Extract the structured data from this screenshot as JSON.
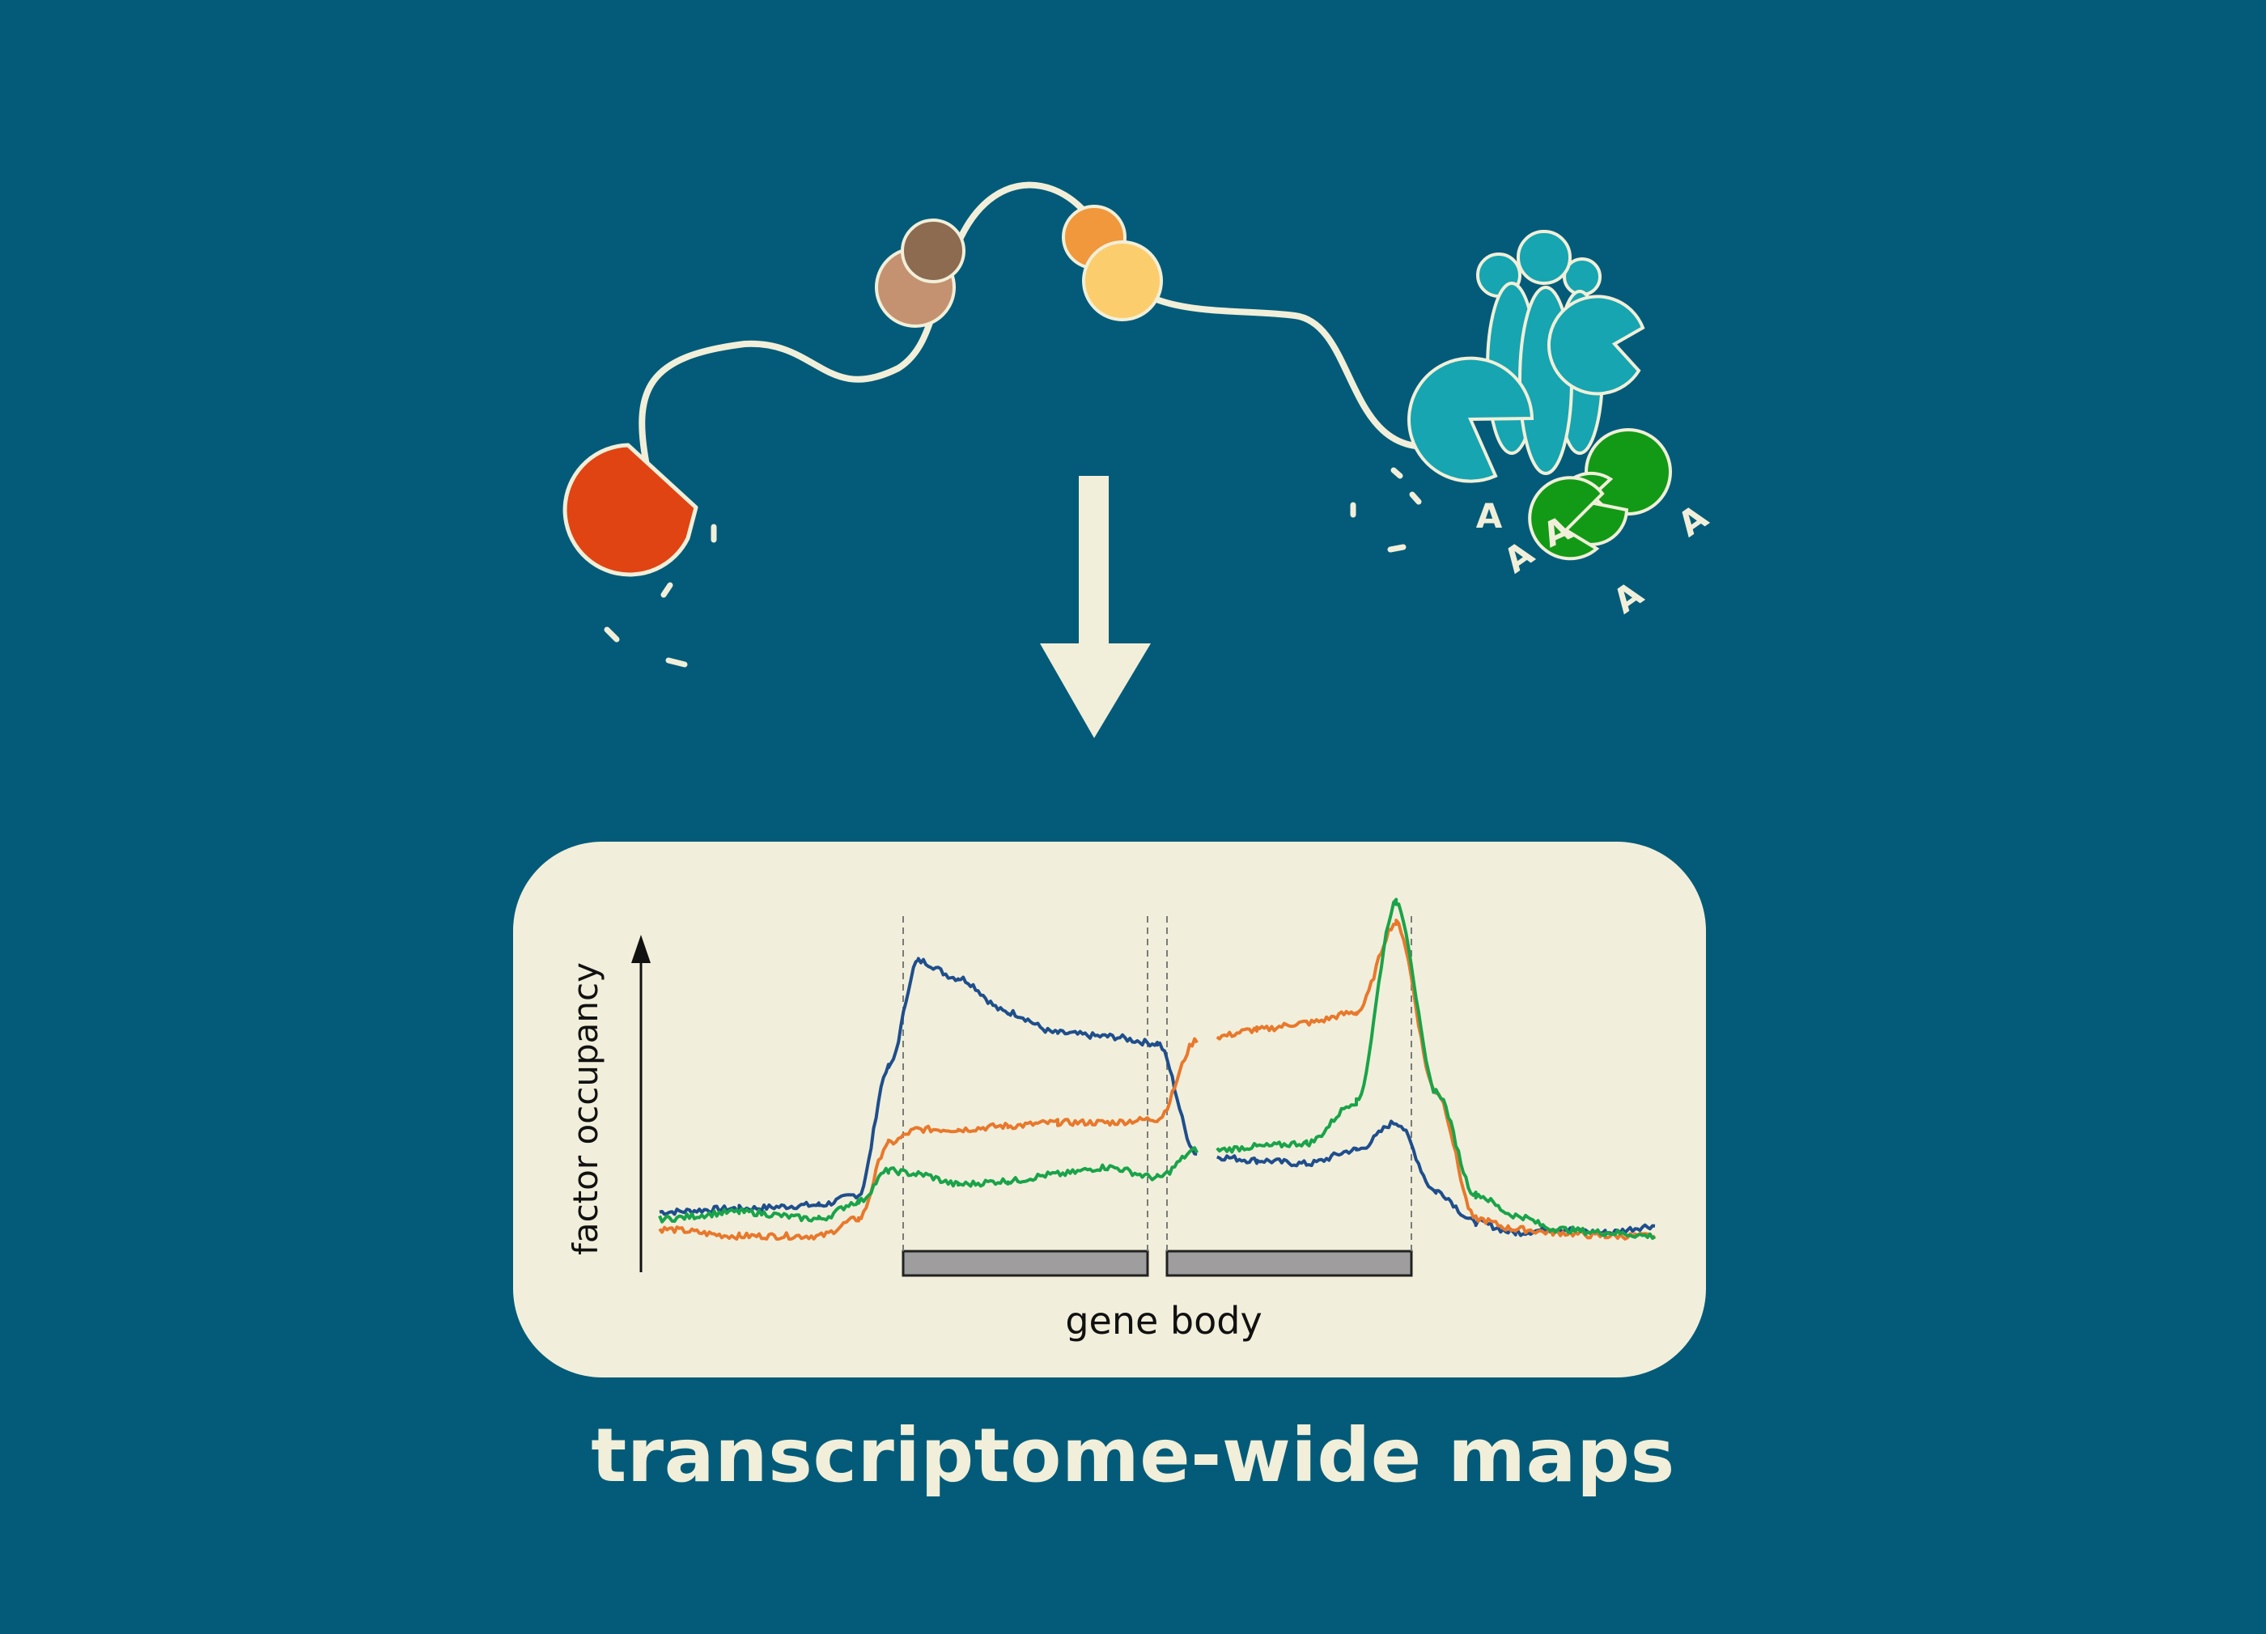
{
  "colors": {
    "background": "#035b79",
    "panel": "#f1efdb",
    "cream": "#f1efd9",
    "blue_series": "#1f4e8c",
    "orange_series": "#e8782c",
    "green_series": "#1aa34a",
    "red_enzyme": "#e04412",
    "teal_complex": "#16a5b1",
    "green_complex": "#129a16"
  },
  "illustration": {
    "poly_a_letters": [
      "A",
      "A",
      "A",
      "A",
      "A"
    ]
  },
  "plot": {
    "y_label": "factor occupancy",
    "x_label": "gene body"
  },
  "footer": {
    "title": "transcriptome-wide maps"
  },
  "chart_data": {
    "type": "line",
    "title": "",
    "xlabel": "gene body",
    "ylabel": "factor occupancy",
    "x_ticks": [],
    "y_ticks": [],
    "note_units": "arbitrary relative units; no axis ticks printed",
    "x": [
      0,
      8,
      16,
      20,
      23,
      26,
      30,
      35,
      40,
      45,
      50,
      54,
      56,
      60,
      65,
      70,
      74,
      78,
      82,
      86,
      90,
      95,
      100
    ],
    "series": [
      {
        "color": "#1f4e8c",
        "values": [
          0.1,
          0.11,
          0.12,
          0.15,
          0.52,
          0.83,
          0.78,
          0.68,
          0.62,
          0.61,
          0.59,
          0.27,
          0.26,
          0.25,
          0.24,
          0.28,
          0.36,
          0.16,
          0.07,
          0.04,
          0.05,
          0.04,
          0.06
        ]
      },
      {
        "color": "#e8782c",
        "values": [
          0.05,
          0.03,
          0.03,
          0.08,
          0.3,
          0.34,
          0.34,
          0.35,
          0.36,
          0.36,
          0.37,
          0.6,
          0.61,
          0.63,
          0.65,
          0.68,
          0.94,
          0.45,
          0.08,
          0.05,
          0.04,
          0.03,
          0.03
        ]
      },
      {
        "color": "#1aa34a",
        "values": [
          0.08,
          0.1,
          0.08,
          0.13,
          0.22,
          0.21,
          0.18,
          0.19,
          0.21,
          0.23,
          0.2,
          0.28,
          0.28,
          0.29,
          0.3,
          0.42,
          1.0,
          0.45,
          0.15,
          0.09,
          0.05,
          0.04,
          0.03
        ]
      }
    ],
    "legend": "none",
    "grid": false
  }
}
